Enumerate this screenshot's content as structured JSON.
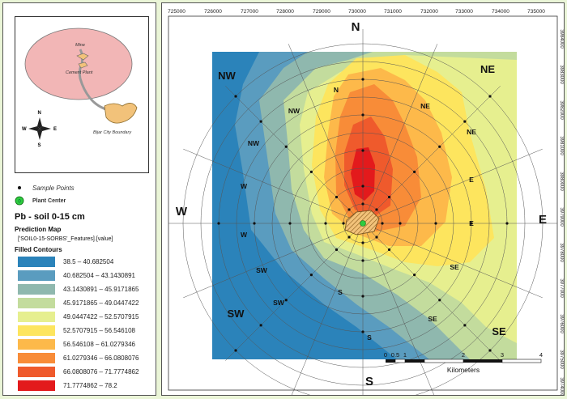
{
  "inset": {
    "labels": [
      "Mine",
      "Cement Plant",
      "Bijar City Boundary"
    ],
    "compass": [
      "N",
      "E",
      "S",
      "W"
    ]
  },
  "legend": {
    "sample_points": "Sample Points",
    "plant_center": "Plant Center",
    "plant_symbol": "0",
    "title": "Pb - soil 0-15 cm",
    "subtitle": "Prediction Map",
    "field": "['SOIL0-15-SORBS'_Features].[value]",
    "filled_contours": "Filled Contours",
    "classes": [
      {
        "label": "38.5 – 40.682504",
        "color": "#2b83ba"
      },
      {
        "label": "40.682504 – 43.1430891",
        "color": "#5a9cbf"
      },
      {
        "label": "43.1430891 – 45.9171865",
        "color": "#8fb8ae"
      },
      {
        "label": "45.9171865 – 49.0447422",
        "color": "#c3dc9d"
      },
      {
        "label": "49.0447422 – 52.5707915",
        "color": "#e6ef8f"
      },
      {
        "label": "52.5707915 – 56.546108",
        "color": "#fde55e"
      },
      {
        "label": "56.546108 – 61.0279346",
        "color": "#fdb94a"
      },
      {
        "label": "61.0279346 – 66.0808076",
        "color": "#f88c38"
      },
      {
        "label": "66.0808076 – 71.7774862",
        "color": "#ef5a2c"
      },
      {
        "label": "71.7774862 – 78.2",
        "color": "#e31a1c"
      }
    ]
  },
  "map": {
    "top_ticks": [
      "725000",
      "726000",
      "727000",
      "728000",
      "729000",
      "730000",
      "731000",
      "732000",
      "733000",
      "734000",
      "735000"
    ],
    "right_ticks": [
      "3984000",
      "3983000",
      "3982000",
      "3981000",
      "3980000",
      "3979000",
      "3978000",
      "3977000",
      "3976000",
      "3975000",
      "3974000"
    ],
    "big_directions": {
      "N": "N",
      "S": "S",
      "E": "E",
      "W": "W",
      "NW": "NW",
      "NE": "NE",
      "SW": "SW",
      "SE": "SE"
    },
    "small_labels": [
      "N",
      "NW",
      "NW",
      "W",
      "W",
      "NE",
      "NE",
      "E",
      "E",
      "SW",
      "SW",
      "S",
      "S",
      "SE",
      "SE"
    ],
    "scalebar": {
      "ticks": [
        "0",
        "0.5",
        "1",
        "2",
        "3",
        "4"
      ],
      "unit": "Kilometers"
    }
  }
}
